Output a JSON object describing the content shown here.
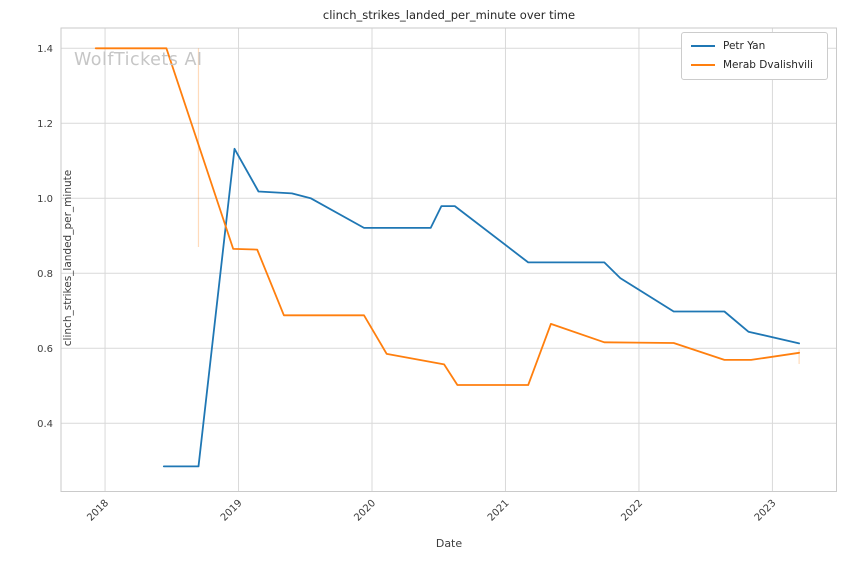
{
  "chart_data": {
    "type": "line",
    "title": "clinch_strikes_landed_per_minute over time",
    "xlabel": "Date",
    "ylabel": "clinch_strikes_landed_per_minute",
    "watermark": "WolfTickets AI",
    "grid": true,
    "legend_position": "upper right",
    "x_ticks": [
      2018,
      2019,
      2020,
      2021,
      2022,
      2023
    ],
    "y_ticks": [
      0.4,
      0.6,
      0.8,
      1.0,
      1.2,
      1.4
    ],
    "xlim": [
      2017.67,
      2023.48
    ],
    "ylim": [
      0.218,
      1.454
    ],
    "series": [
      {
        "name": "Petr Yan",
        "color": "#1f77b4",
        "points": [
          [
            2018.44,
            0.285
          ],
          [
            2018.7,
            0.285
          ],
          [
            2018.97,
            1.132
          ],
          [
            2019.15,
            1.018
          ],
          [
            2019.4,
            1.013
          ],
          [
            2019.54,
            1.0
          ],
          [
            2019.94,
            0.921
          ],
          [
            2020.44,
            0.921
          ],
          [
            2020.52,
            0.979
          ],
          [
            2020.62,
            0.979
          ],
          [
            2021.17,
            0.829
          ],
          [
            2021.74,
            0.829
          ],
          [
            2021.86,
            0.787
          ],
          [
            2022.26,
            0.698
          ],
          [
            2022.64,
            0.698
          ],
          [
            2022.82,
            0.644
          ],
          [
            2023.2,
            0.613
          ]
        ]
      },
      {
        "name": "Merab Dvalishvili",
        "color": "#ff7f0e",
        "points": [
          [
            2017.93,
            1.4
          ],
          [
            2018.46,
            1.4
          ],
          [
            2018.96,
            0.865
          ],
          [
            2019.14,
            0.863
          ],
          [
            2019.34,
            0.688
          ],
          [
            2019.94,
            0.688
          ],
          [
            2020.11,
            0.585
          ],
          [
            2020.54,
            0.557
          ],
          [
            2020.64,
            0.502
          ],
          [
            2021.17,
            0.502
          ],
          [
            2021.34,
            0.665
          ],
          [
            2021.74,
            0.616
          ],
          [
            2022.26,
            0.614
          ],
          [
            2022.64,
            0.569
          ],
          [
            2022.84,
            0.569
          ],
          [
            2023.2,
            0.588
          ]
        ],
        "vertical_markers": [
          {
            "x": 2018.7,
            "y_min": 0.87,
            "y_max": 1.4
          },
          {
            "x": 2023.2,
            "y_min": 0.558,
            "y_max": 0.597
          }
        ]
      }
    ]
  },
  "legend": {
    "items": [
      {
        "label": "Petr Yan"
      },
      {
        "label": "Merab Dvalishvili"
      }
    ]
  }
}
